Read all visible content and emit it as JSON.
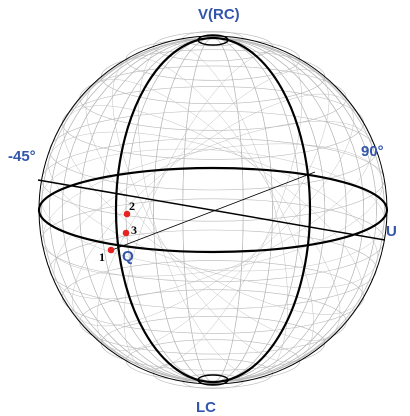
{
  "labels": {
    "top": "V(RC)",
    "bottom": "LC",
    "left": "-45°",
    "right": "90°",
    "axis_u": "U",
    "axis_q": "Q"
  },
  "points": [
    {
      "label": "1"
    },
    {
      "label": "2"
    },
    {
      "label": "3"
    }
  ],
  "colors": {
    "axis_label": "#3355aa",
    "point": "#e8231f",
    "frame": "#000000",
    "grid": "#b8b8b8"
  }
}
